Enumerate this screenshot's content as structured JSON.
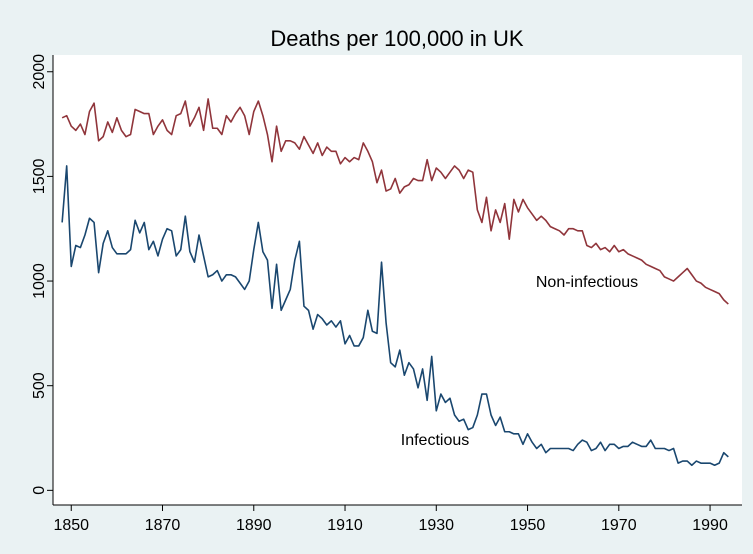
{
  "chart_data": {
    "type": "line",
    "title": "Deaths per 100,000 in UK",
    "x": [
      1848,
      1849,
      1850,
      1851,
      1852,
      1853,
      1854,
      1855,
      1856,
      1857,
      1858,
      1859,
      1860,
      1861,
      1862,
      1863,
      1864,
      1865,
      1866,
      1867,
      1868,
      1869,
      1870,
      1871,
      1872,
      1873,
      1874,
      1875,
      1876,
      1877,
      1878,
      1879,
      1880,
      1881,
      1882,
      1883,
      1884,
      1885,
      1886,
      1887,
      1888,
      1889,
      1890,
      1891,
      1892,
      1893,
      1894,
      1895,
      1896,
      1897,
      1898,
      1899,
      1900,
      1901,
      1902,
      1903,
      1904,
      1905,
      1906,
      1907,
      1908,
      1909,
      1910,
      1911,
      1912,
      1913,
      1914,
      1915,
      1916,
      1917,
      1918,
      1919,
      1920,
      1921,
      1922,
      1923,
      1924,
      1925,
      1926,
      1927,
      1928,
      1929,
      1930,
      1931,
      1932,
      1933,
      1934,
      1935,
      1936,
      1937,
      1938,
      1939,
      1940,
      1941,
      1942,
      1943,
      1944,
      1945,
      1946,
      1947,
      1948,
      1949,
      1950,
      1951,
      1952,
      1953,
      1954,
      1955,
      1956,
      1957,
      1958,
      1959,
      1960,
      1961,
      1962,
      1963,
      1964,
      1965,
      1966,
      1967,
      1968,
      1969,
      1970,
      1971,
      1972,
      1973,
      1974,
      1975,
      1976,
      1977,
      1978,
      1979,
      1980,
      1981,
      1982,
      1983,
      1984,
      1985,
      1986,
      1987,
      1988,
      1989,
      1990,
      1991,
      1992,
      1993,
      1994
    ],
    "series": [
      {
        "name": "Non-infectious",
        "color": "#90353b",
        "values": [
          1780,
          1790,
          1740,
          1720,
          1750,
          1700,
          1810,
          1850,
          1670,
          1690,
          1760,
          1710,
          1780,
          1720,
          1690,
          1700,
          1820,
          1810,
          1800,
          1800,
          1700,
          1740,
          1770,
          1720,
          1700,
          1790,
          1800,
          1860,
          1740,
          1780,
          1830,
          1720,
          1870,
          1730,
          1730,
          1700,
          1790,
          1760,
          1800,
          1830,
          1790,
          1700,
          1810,
          1860,
          1790,
          1700,
          1570,
          1740,
          1620,
          1670,
          1670,
          1660,
          1630,
          1690,
          1650,
          1610,
          1660,
          1600,
          1640,
          1620,
          1620,
          1560,
          1590,
          1570,
          1590,
          1580,
          1660,
          1620,
          1570,
          1470,
          1530,
          1430,
          1440,
          1490,
          1420,
          1450,
          1460,
          1490,
          1480,
          1480,
          1580,
          1480,
          1540,
          1520,
          1490,
          1520,
          1550,
          1530,
          1490,
          1530,
          1520,
          1340,
          1280,
          1400,
          1240,
          1340,
          1280,
          1370,
          1200,
          1390,
          1330,
          1390,
          1350,
          1320,
          1290,
          1310,
          1290,
          1260,
          1250,
          1240,
          1220,
          1250,
          1250,
          1240,
          1240,
          1170,
          1160,
          1180,
          1150,
          1160,
          1140,
          1170,
          1140,
          1150,
          1130,
          1120,
          1110,
          1100,
          1080,
          1070,
          1060,
          1050,
          1020,
          1010,
          1000,
          1020,
          1040,
          1060,
          1030,
          1000,
          990,
          970,
          960,
          950,
          940,
          910,
          890
        ]
      },
      {
        "name": "Infectious",
        "color": "#1a476f",
        "values": [
          1280,
          1550,
          1070,
          1170,
          1160,
          1220,
          1300,
          1280,
          1040,
          1180,
          1240,
          1160,
          1130,
          1130,
          1130,
          1150,
          1290,
          1230,
          1280,
          1150,
          1190,
          1120,
          1200,
          1250,
          1240,
          1120,
          1150,
          1310,
          1140,
          1090,
          1220,
          1120,
          1020,
          1030,
          1050,
          1000,
          1030,
          1030,
          1020,
          990,
          960,
          1000,
          1150,
          1280,
          1140,
          1100,
          870,
          1080,
          860,
          910,
          960,
          1100,
          1190,
          880,
          860,
          770,
          840,
          820,
          790,
          810,
          780,
          810,
          700,
          740,
          690,
          690,
          730,
          860,
          760,
          750,
          1090,
          800,
          610,
          590,
          670,
          550,
          610,
          580,
          490,
          580,
          430,
          640,
          380,
          460,
          420,
          440,
          360,
          330,
          340,
          290,
          300,
          360,
          460,
          460,
          360,
          310,
          350,
          280,
          280,
          270,
          270,
          220,
          270,
          230,
          200,
          220,
          180,
          200,
          200,
          200,
          200,
          200,
          190,
          220,
          240,
          230,
          190,
          200,
          230,
          190,
          220,
          220,
          200,
          210,
          210,
          230,
          220,
          210,
          210,
          240,
          200,
          200,
          200,
          190,
          200,
          130,
          140,
          140,
          120,
          140,
          130,
          130,
          130,
          120,
          130,
          180,
          160
        ]
      }
    ],
    "xlim": [
      1846,
      1997
    ],
    "xticks": [
      1850,
      1870,
      1890,
      1910,
      1930,
      1950,
      1970,
      1990
    ],
    "ylim": [
      -70,
      2080
    ],
    "yticks": [
      0,
      500,
      1000,
      1500,
      2000
    ],
    "grid": false
  }
}
